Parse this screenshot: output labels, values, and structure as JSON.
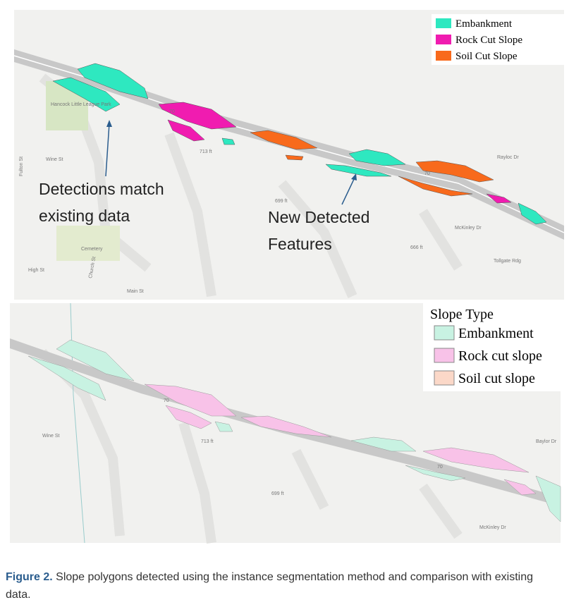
{
  "top_map": {
    "legend": [
      "Embankment",
      "Rock Cut Slope",
      "Soil Cut Slope"
    ],
    "annotations": [
      [
        "Detections match",
        "existing data"
      ],
      [
        "New Detected",
        "Features"
      ]
    ],
    "labels": [
      "Hancock Little League Park",
      "Wine St",
      "Cemetery",
      "High St",
      "Main St",
      "Church St",
      "Fulton St",
      "713 ft",
      "699 ft",
      "666 ft",
      "Rayloc Dr",
      "McKinley Dr",
      "Tollgate Rdg",
      "70"
    ]
  },
  "bottom_map": {
    "legend_title": "Slope Type",
    "legend": [
      "Embankment",
      "Rock cut slope",
      "Soil cut slope"
    ],
    "labels": [
      "Wine St",
      "713 ft",
      "699 ft",
      "Baylor Dr",
      "McKinley Dr",
      "70"
    ]
  },
  "caption": {
    "label": "Figure 2.",
    "text": "Slope polygons detected using the instance segmentation method and comparison with existing data."
  }
}
